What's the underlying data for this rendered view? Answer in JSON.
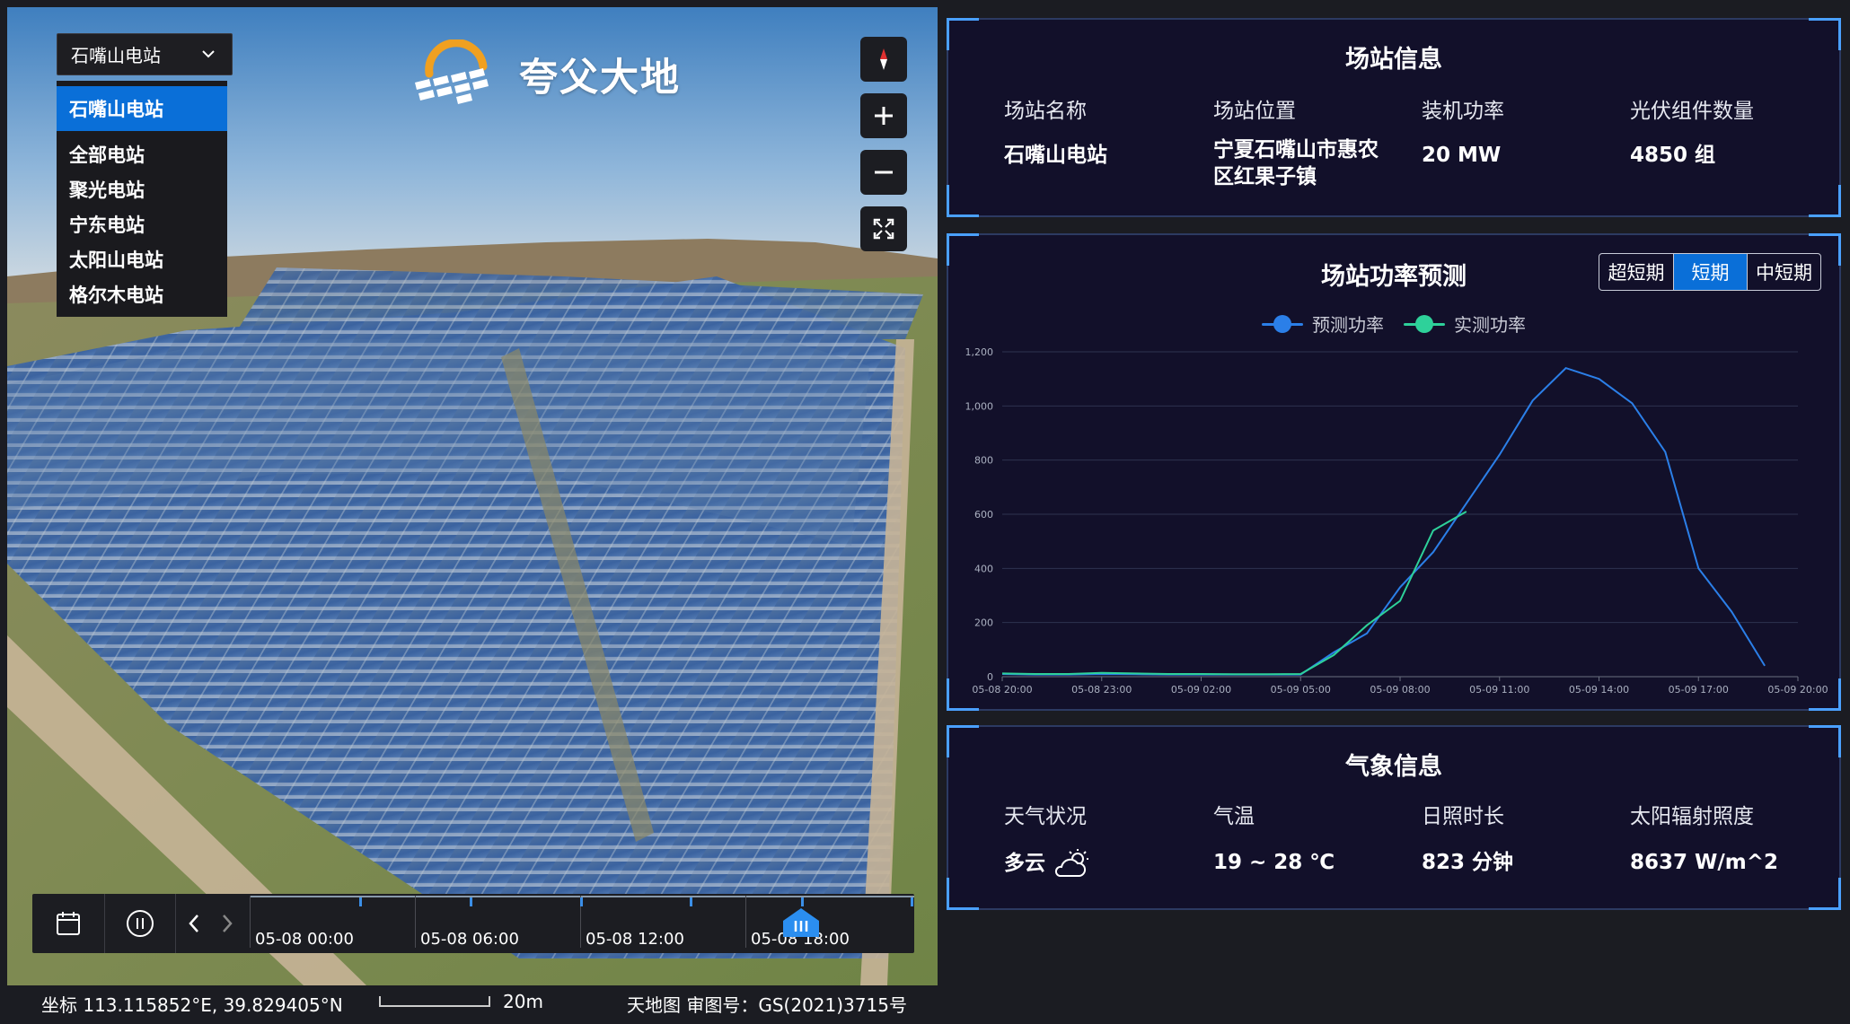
{
  "brand": {
    "name": "夸父大地",
    "logo_icon": "sun-panel-logo-icon"
  },
  "station_select": {
    "selected": "石嘴山电站",
    "options": [
      "石嘴山电站",
      "全部电站",
      "聚光电站",
      "宁东电站",
      "太阳山电站",
      "格尔木电站"
    ]
  },
  "map_controls": [
    "compass-icon",
    "zoom-in-icon",
    "zoom-out-icon",
    "fullscreen-icon"
  ],
  "timeline": {
    "labels": [
      "05-08 00:00",
      "05-08 06:00",
      "05-08 12:00",
      "05-08 18:00"
    ],
    "icons": [
      "calendar-icon",
      "pause-icon",
      "prev-icon",
      "next-icon"
    ]
  },
  "statusbar": {
    "coords": "坐标 113.115852°E, 39.829405°N",
    "scale": "20m",
    "attribution": "天地图 审图号：GS(2021)3715号"
  },
  "station_info": {
    "title": "场站信息",
    "fields": [
      {
        "label": "场站名称",
        "value": "石嘴山电站"
      },
      {
        "label": "场站位置",
        "value": "宁夏石嘴山市惠农区红果子镇"
      },
      {
        "label": "装机功率",
        "value": "20 MW"
      },
      {
        "label": "光伏组件数量",
        "value": "4850 组"
      }
    ]
  },
  "forecast": {
    "title": "场站功率预测",
    "tabs": [
      "超短期",
      "短期",
      "中短期"
    ],
    "active_tab": "短期"
  },
  "chart_data": {
    "type": "line",
    "x_ticks": [
      "05-08 20:00",
      "05-08 23:00",
      "05-09 02:00",
      "05-09 05:00",
      "05-09 08:00",
      "05-09 11:00",
      "05-09 14:00",
      "05-09 17:00",
      "05-09 20:00"
    ],
    "ylim": [
      0,
      1200
    ],
    "y_ticks": [
      "0",
      "200",
      "400",
      "600",
      "800",
      "1,000",
      "1,200"
    ],
    "grid": true,
    "legend_position": "top",
    "series": [
      {
        "name": "预测功率",
        "color": "#2b7fe8",
        "points": [
          [
            0,
            10
          ],
          [
            1,
            8
          ],
          [
            2,
            8
          ],
          [
            3,
            10
          ],
          [
            4,
            9
          ],
          [
            5,
            8
          ],
          [
            6,
            8
          ],
          [
            7,
            8
          ],
          [
            8,
            8
          ],
          [
            9,
            8
          ],
          [
            10,
            90
          ],
          [
            11,
            160
          ],
          [
            12,
            330
          ],
          [
            13,
            460
          ],
          [
            14,
            640
          ],
          [
            15,
            820
          ],
          [
            16,
            1020
          ],
          [
            17,
            1140
          ],
          [
            18,
            1100
          ],
          [
            19,
            1010
          ],
          [
            20,
            830
          ],
          [
            21,
            400
          ],
          [
            22,
            240
          ],
          [
            23,
            40
          ]
        ]
      },
      {
        "name": "实测功率",
        "color": "#2ed19a",
        "points": [
          [
            0,
            12
          ],
          [
            1,
            10
          ],
          [
            2,
            10
          ],
          [
            3,
            14
          ],
          [
            4,
            12
          ],
          [
            5,
            10
          ],
          [
            6,
            10
          ],
          [
            7,
            9
          ],
          [
            8,
            9
          ],
          [
            9,
            10
          ],
          [
            10,
            80
          ],
          [
            11,
            190
          ],
          [
            12,
            280
          ],
          [
            13,
            540
          ],
          [
            14,
            610
          ]
        ]
      }
    ]
  },
  "weather": {
    "title": "气象信息",
    "fields": [
      {
        "label": "天气状况",
        "value": "多云",
        "icon": "partly-cloudy-icon"
      },
      {
        "label": "气温",
        "value": "19 ~ 28 ℃"
      },
      {
        "label": "日照时长",
        "value": "823 分钟"
      },
      {
        "label": "太阳辐射照度",
        "value": "8637 W/m^2"
      }
    ]
  },
  "colors": {
    "accent": "#0a6fd8",
    "panel_bg": "#12102a",
    "corner": "#4aa0ff"
  }
}
